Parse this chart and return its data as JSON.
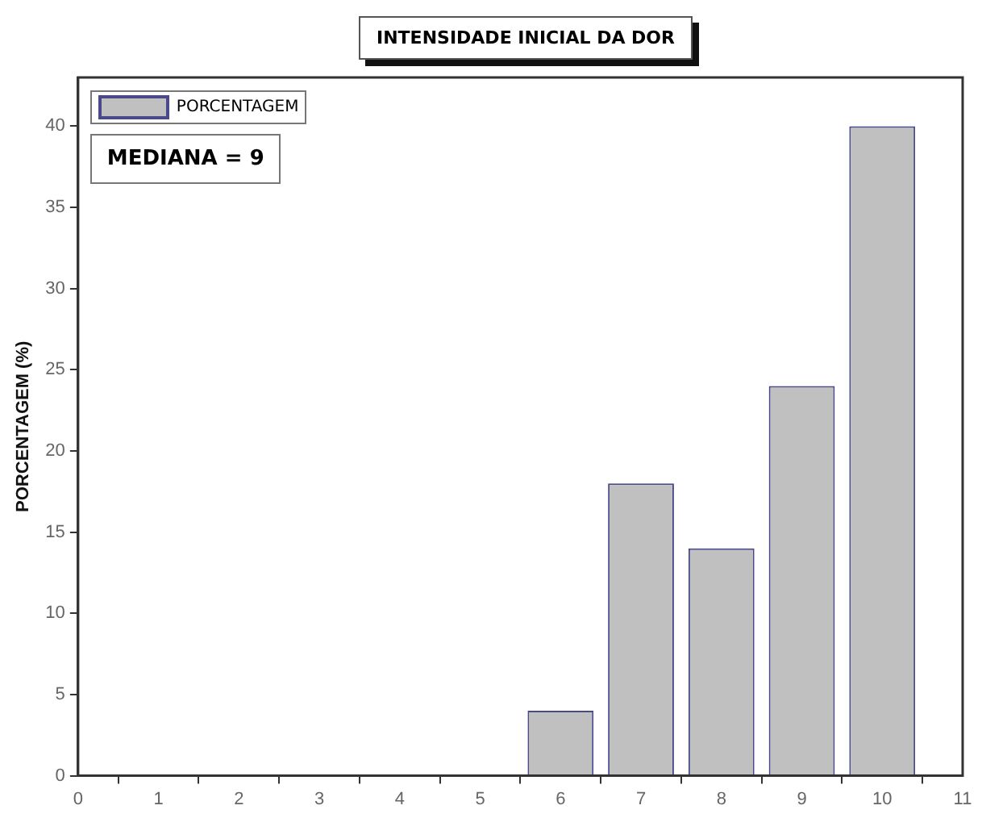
{
  "chart_data": {
    "type": "bar",
    "title": "INTENSIDADE INICIAL DA DOR",
    "ylabel": "PORCENTAGEM (%)",
    "x": [
      6,
      7,
      8,
      9,
      10
    ],
    "series": [
      {
        "name": "PORCENTAGEM",
        "color": "#c0c0c0",
        "values": [
          4,
          18,
          14,
          24,
          40
        ]
      }
    ],
    "xlim": [
      0,
      11
    ],
    "xticks": [
      0,
      1,
      2,
      3,
      4,
      5,
      6,
      7,
      8,
      9,
      10,
      11
    ],
    "ylim": [
      0,
      43
    ],
    "yticks": [
      0,
      5,
      10,
      15,
      20,
      25,
      30,
      35,
      40
    ],
    "legend": "top left",
    "grid": false,
    "annotations": [
      "MEDIANA = 9"
    ]
  }
}
